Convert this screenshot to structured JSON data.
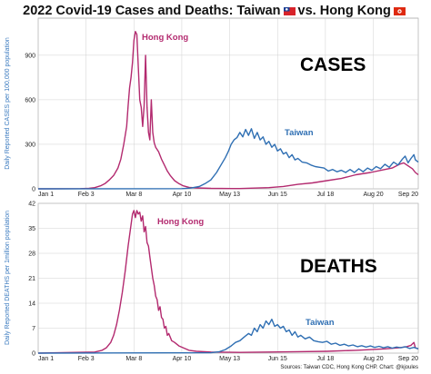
{
  "title": {
    "main": "2022 Covid-19 Cases and Deaths: Taiwan",
    "vs": "vs. Hong Kong"
  },
  "source": "Sources: Taiwan CDC, Hong Kong CHP. Chart: @kjoules",
  "colors": {
    "taiwan": "#2f6fb3",
    "hong_kong": "#b32a6f",
    "grid": "#d0d0d0"
  },
  "chart_data": [
    {
      "type": "line",
      "title": "CASES",
      "ylabel": "Daily Reported CASES per 100,000 population",
      "x_unit": "day of year (2022)",
      "xticks": [
        {
          "day": 1,
          "label": "Jan 1"
        },
        {
          "day": 34,
          "label": "Feb 3"
        },
        {
          "day": 67,
          "label": "Mar 8"
        },
        {
          "day": 100,
          "label": "Apr 10"
        },
        {
          "day": 133,
          "label": "May 13"
        },
        {
          "day": 166,
          "label": "Jun 15"
        },
        {
          "day": 199,
          "label": "Jul 18"
        },
        {
          "day": 232,
          "label": "Aug 20"
        },
        {
          "day": 263,
          "label": "Sep 20"
        }
      ],
      "ylim": [
        0,
        1150
      ],
      "yticks": [
        0,
        300,
        600,
        900
      ],
      "grid": true,
      "series": [
        {
          "name": "Hong Kong",
          "color": "#b32a6f",
          "points": [
            [
              1,
              0
            ],
            [
              30,
              1
            ],
            [
              36,
              3
            ],
            [
              40,
              8
            ],
            [
              44,
              20
            ],
            [
              47,
              35
            ],
            [
              50,
              60
            ],
            [
              53,
              90
            ],
            [
              56,
              140
            ],
            [
              58,
              200
            ],
            [
              60,
              300
            ],
            [
              62,
              420
            ],
            [
              63,
              560
            ],
            [
              64,
              680
            ],
            [
              65,
              750
            ],
            [
              66,
              850
            ],
            [
              67,
              1000
            ],
            [
              68,
              1060
            ],
            [
              69,
              1040
            ],
            [
              70,
              820
            ],
            [
              71,
              600
            ],
            [
              72,
              550
            ],
            [
              73,
              420
            ],
            [
              74,
              560
            ],
            [
              75,
              900
            ],
            [
              76,
              550
            ],
            [
              77,
              380
            ],
            [
              78,
              330
            ],
            [
              79,
              600
            ],
            [
              80,
              380
            ],
            [
              81,
              310
            ],
            [
              82,
              280
            ],
            [
              84,
              250
            ],
            [
              86,
              200
            ],
            [
              88,
              160
            ],
            [
              90,
              120
            ],
            [
              92,
              90
            ],
            [
              95,
              55
            ],
            [
              98,
              35
            ],
            [
              101,
              20
            ],
            [
              105,
              10
            ],
            [
              110,
              6
            ],
            [
              120,
              3
            ],
            [
              140,
              2
            ],
            [
              160,
              8
            ],
            [
              170,
              16
            ],
            [
              180,
              30
            ],
            [
              190,
              40
            ],
            [
              200,
              55
            ],
            [
              210,
              70
            ],
            [
              220,
              95
            ],
            [
              230,
              110
            ],
            [
              240,
              130
            ],
            [
              245,
              140
            ],
            [
              250,
              165
            ],
            [
              253,
              175
            ],
            [
              256,
              155
            ],
            [
              259,
              135
            ],
            [
              261,
              110
            ],
            [
              263,
              95
            ]
          ]
        },
        {
          "name": "Taiwan",
          "color": "#2f6fb3",
          "points": [
            [
              1,
              0
            ],
            [
              100,
              1
            ],
            [
              106,
              5
            ],
            [
              112,
              15
            ],
            [
              116,
              35
            ],
            [
              120,
              60
            ],
            [
              124,
              110
            ],
            [
              127,
              160
            ],
            [
              130,
              210
            ],
            [
              132,
              250
            ],
            [
              134,
              300
            ],
            [
              136,
              330
            ],
            [
              138,
              345
            ],
            [
              140,
              380
            ],
            [
              142,
              350
            ],
            [
              144,
              400
            ],
            [
              146,
              360
            ],
            [
              148,
              405
            ],
            [
              150,
              340
            ],
            [
              152,
              380
            ],
            [
              154,
              330
            ],
            [
              156,
              350
            ],
            [
              158,
              300
            ],
            [
              160,
              320
            ],
            [
              162,
              280
            ],
            [
              164,
              300
            ],
            [
              166,
              255
            ],
            [
              168,
              270
            ],
            [
              170,
              235
            ],
            [
              172,
              245
            ],
            [
              174,
              210
            ],
            [
              176,
              230
            ],
            [
              178,
              195
            ],
            [
              180,
              205
            ],
            [
              183,
              180
            ],
            [
              186,
              175
            ],
            [
              189,
              160
            ],
            [
              192,
              150
            ],
            [
              195,
              145
            ],
            [
              198,
              140
            ],
            [
              201,
              120
            ],
            [
              204,
              130
            ],
            [
              207,
              115
            ],
            [
              210,
              125
            ],
            [
              213,
              110
            ],
            [
              216,
              130
            ],
            [
              219,
              110
            ],
            [
              222,
              135
            ],
            [
              225,
              115
            ],
            [
              228,
              140
            ],
            [
              231,
              125
            ],
            [
              234,
              150
            ],
            [
              237,
              135
            ],
            [
              240,
              165
            ],
            [
              243,
              145
            ],
            [
              246,
              180
            ],
            [
              249,
              160
            ],
            [
              252,
              200
            ],
            [
              254,
              220
            ],
            [
              256,
              175
            ],
            [
              258,
              205
            ],
            [
              260,
              230
            ],
            [
              261,
              195
            ],
            [
              263,
              180
            ]
          ]
        }
      ]
    },
    {
      "type": "line",
      "title": "DEATHS",
      "ylabel": "Daily Reported DEATHS per 1million population",
      "x_unit": "day of year (2022)",
      "xticks": [
        {
          "day": 1,
          "label": "Jan 1"
        },
        {
          "day": 34,
          "label": "Feb 3"
        },
        {
          "day": 67,
          "label": "Mar 8"
        },
        {
          "day": 100,
          "label": "Apr 10"
        },
        {
          "day": 133,
          "label": "May 13"
        },
        {
          "day": 166,
          "label": "Jun 15"
        },
        {
          "day": 199,
          "label": "Jul 18"
        },
        {
          "day": 232,
          "label": "Aug 20"
        },
        {
          "day": 263,
          "label": "Sep 20"
        }
      ],
      "ylim": [
        0,
        42
      ],
      "yticks": [
        0,
        7,
        14,
        21,
        28,
        35,
        42
      ],
      "grid": true,
      "series": [
        {
          "name": "Hong Kong",
          "color": "#b32a6f",
          "points": [
            [
              1,
              0
            ],
            [
              40,
              0.3
            ],
            [
              45,
              0.8
            ],
            [
              48,
              1.5
            ],
            [
              51,
              3
            ],
            [
              53,
              5
            ],
            [
              55,
              8
            ],
            [
              57,
              12
            ],
            [
              59,
              17
            ],
            [
              61,
              23
            ],
            [
              63,
              30
            ],
            [
              65,
              36
            ],
            [
              66,
              39
            ],
            [
              67,
              40
            ],
            [
              68,
              38
            ],
            [
              69,
              40
            ],
            [
              70,
              39
            ],
            [
              71,
              39.5
            ],
            [
              72,
              37
            ],
            [
              73,
              38.5
            ],
            [
              74,
              34
            ],
            [
              75,
              35.5
            ],
            [
              76,
              31
            ],
            [
              77,
              30
            ],
            [
              78,
              27
            ],
            [
              79,
              24
            ],
            [
              80,
              21
            ],
            [
              81,
              19
            ],
            [
              82,
              16
            ],
            [
              83,
              15
            ],
            [
              84,
              12
            ],
            [
              85,
              13
            ],
            [
              86,
              10
            ],
            [
              87,
              9.5
            ],
            [
              88,
              7
            ],
            [
              89,
              7.5
            ],
            [
              90,
              5
            ],
            [
              91,
              5.5
            ],
            [
              93,
              3.5
            ],
            [
              95,
              3
            ],
            [
              98,
              2
            ],
            [
              101,
              1.5
            ],
            [
              105,
              0.8
            ],
            [
              110,
              0.5
            ],
            [
              120,
              0.3
            ],
            [
              140,
              0.2
            ],
            [
              160,
              0.3
            ],
            [
              180,
              0.4
            ],
            [
              200,
              0.5
            ],
            [
              220,
              0.8
            ],
            [
              240,
              1.2
            ],
            [
              250,
              1.5
            ],
            [
              255,
              1.8
            ],
            [
              258,
              2.2
            ],
            [
              260,
              3
            ],
            [
              261,
              1.5
            ],
            [
              263,
              1.2
            ]
          ]
        },
        {
          "name": "Taiwan",
          "color": "#2f6fb3",
          "points": [
            [
              1,
              0
            ],
            [
              120,
              0.1
            ],
            [
              126,
              0.4
            ],
            [
              130,
              1
            ],
            [
              134,
              2
            ],
            [
              137,
              3
            ],
            [
              140,
              3.5
            ],
            [
              143,
              4.5
            ],
            [
              146,
              5.5
            ],
            [
              148,
              5
            ],
            [
              150,
              7
            ],
            [
              152,
              6
            ],
            [
              154,
              8
            ],
            [
              156,
              7
            ],
            [
              158,
              9
            ],
            [
              160,
              8
            ],
            [
              162,
              9.5
            ],
            [
              164,
              7.5
            ],
            [
              166,
              8
            ],
            [
              168,
              7
            ],
            [
              170,
              7.5
            ],
            [
              172,
              6
            ],
            [
              174,
              6.5
            ],
            [
              176,
              5
            ],
            [
              178,
              6
            ],
            [
              180,
              4.5
            ],
            [
              182,
              5
            ],
            [
              185,
              4
            ],
            [
              188,
              4.5
            ],
            [
              191,
              3.5
            ],
            [
              194,
              3.2
            ],
            [
              197,
              3
            ],
            [
              200,
              3.3
            ],
            [
              203,
              2.5
            ],
            [
              206,
              2.8
            ],
            [
              209,
              2.2
            ],
            [
              212,
              2.5
            ],
            [
              215,
              2
            ],
            [
              218,
              2.3
            ],
            [
              221,
              1.8
            ],
            [
              224,
              2.1
            ],
            [
              227,
              1.7
            ],
            [
              230,
              2
            ],
            [
              233,
              1.6
            ],
            [
              236,
              1.9
            ],
            [
              239,
              1.5
            ],
            [
              242,
              1.8
            ],
            [
              245,
              1.4
            ],
            [
              248,
              1.7
            ],
            [
              251,
              1.5
            ],
            [
              254,
              1.8
            ],
            [
              257,
              1.3
            ],
            [
              260,
              1.6
            ],
            [
              263,
              1.2
            ]
          ]
        }
      ]
    }
  ]
}
